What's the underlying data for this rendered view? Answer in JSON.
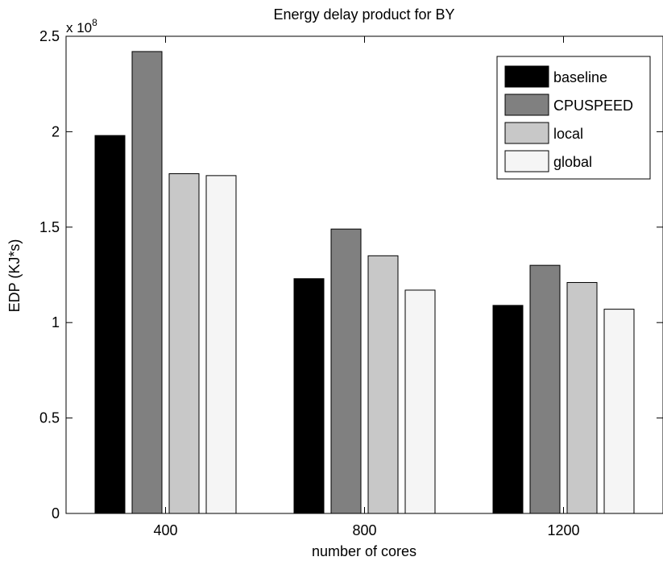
{
  "chart_data": {
    "type": "bar",
    "title": "Energy delay product for BY",
    "xlabel": "number of cores",
    "ylabel": "EDP (KJ*s)",
    "y_multiplier_label": "x 10",
    "y_multiplier_exponent": "8",
    "categories": [
      "400",
      "800",
      "1200"
    ],
    "ylim": [
      0,
      2.5
    ],
    "yticks": [
      {
        "value": 0,
        "label": "0"
      },
      {
        "value": 0.5,
        "label": "0.5"
      },
      {
        "value": 1,
        "label": "1"
      },
      {
        "value": 1.5,
        "label": "1.5"
      },
      {
        "value": 2,
        "label": "2"
      },
      {
        "value": 2.5,
        "label": "2.5"
      }
    ],
    "grid": false,
    "legend_position": "top-right",
    "series": [
      {
        "name": "baseline",
        "color": "#000000",
        "values": [
          1.98,
          1.23,
          1.09
        ]
      },
      {
        "name": "CPUSPEED",
        "color": "#808080",
        "values": [
          2.42,
          1.49,
          1.3
        ]
      },
      {
        "name": "local",
        "color": "#c8c8c8",
        "values": [
          1.78,
          1.35,
          1.21
        ]
      },
      {
        "name": "global",
        "color": "#f5f5f5",
        "values": [
          1.77,
          1.17,
          1.07
        ]
      }
    ]
  }
}
